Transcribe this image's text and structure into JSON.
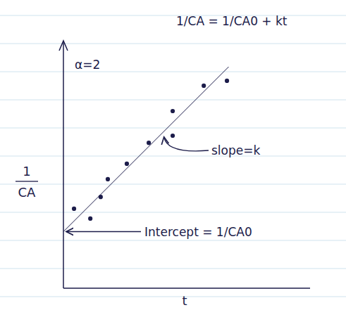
{
  "chart_data": {
    "type": "scatter",
    "title": "1/CA = 1/CA0 + kt",
    "x_label": "t",
    "y_label": "1/CA",
    "annotations": [
      "α=2",
      "slope=k",
      "Intercept = 1/CA0"
    ],
    "xlim": [
      0,
      10
    ],
    "ylim": [
      0,
      10
    ],
    "xticks": [],
    "yticks": [],
    "tick_labels": false,
    "grid": false,
    "series": [
      {
        "type": "scatter",
        "marker": "circle",
        "color": "#1c1c4a",
        "x": [
          0.43,
          1.09,
          1.51,
          1.8,
          2.57,
          3.46,
          4.43,
          4.43,
          5.69,
          6.63
        ],
        "values": [
          3.23,
          2.83,
          3.71,
          4.43,
          5.06,
          5.91,
          7.2,
          6.2,
          8.23,
          8.43
        ]
      },
      {
        "type": "line",
        "line_style": "solid",
        "color": "#1c1c4a",
        "x": [
          0,
          6.7
        ],
        "values": [
          2.3,
          9.0
        ]
      }
    ]
  }
}
